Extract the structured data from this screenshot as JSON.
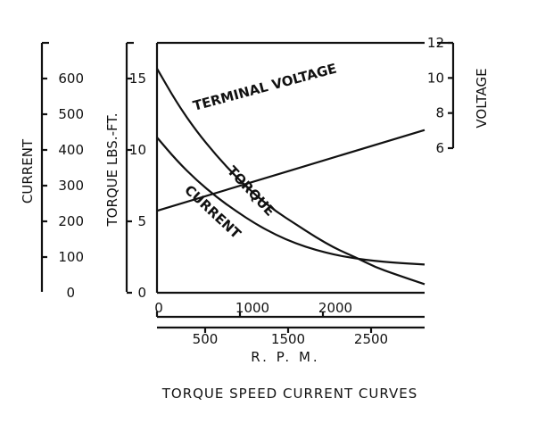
{
  "chart_data": {
    "type": "line",
    "title": "TORQUE SPEED CURRENT CURVES",
    "xlabel": "R. P. M.",
    "x_ticks_upper": [
      "0",
      "1000",
      "2000"
    ],
    "x_ticks_lower": [
      "500",
      "1500",
      "2500"
    ],
    "xlim": [
      0,
      2700
    ],
    "axes": {
      "current": {
        "label": "CURRENT",
        "ticks": [
          "0",
          "100",
          "200",
          "300",
          "400",
          "500",
          "600"
        ],
        "ylim": [
          0,
          700
        ]
      },
      "torque": {
        "label": "TORQUE LBS.-FT.",
        "ticks": [
          "0",
          "5",
          "10",
          "15"
        ],
        "ylim": [
          0,
          17.5
        ]
      },
      "voltage": {
        "label": "VOLTAGE",
        "ticks": [
          "6",
          "8",
          "10",
          "12"
        ],
        "ylim": [
          6,
          12
        ]
      }
    },
    "series": [
      {
        "name": "TORQUE",
        "axis": "torque",
        "x": [
          0,
          200,
          400,
          600,
          800,
          1000,
          1200,
          1400,
          1600,
          1800,
          2000,
          2200,
          2400,
          2700
        ],
        "values": [
          15.7,
          13.3,
          11.3,
          9.6,
          8.1,
          6.8,
          5.7,
          4.8,
          3.9,
          3.1,
          2.5,
          1.8,
          1.3,
          0.6
        ]
      },
      {
        "name": "CURRENT",
        "axis": "current",
        "x": [
          0,
          200,
          400,
          600,
          800,
          1000,
          1200,
          1400,
          1600,
          1800,
          2000,
          2200,
          2400,
          2700
        ],
        "values": [
          435,
          370,
          315,
          268,
          228,
          192,
          162,
          138,
          120,
          106,
          96,
          89,
          84,
          79
        ]
      },
      {
        "name": "TERMINAL VOLTAGE",
        "axis": "voltage",
        "x": [
          0,
          2700
        ],
        "values": [
          6.5,
          11.1
        ]
      }
    ]
  }
}
